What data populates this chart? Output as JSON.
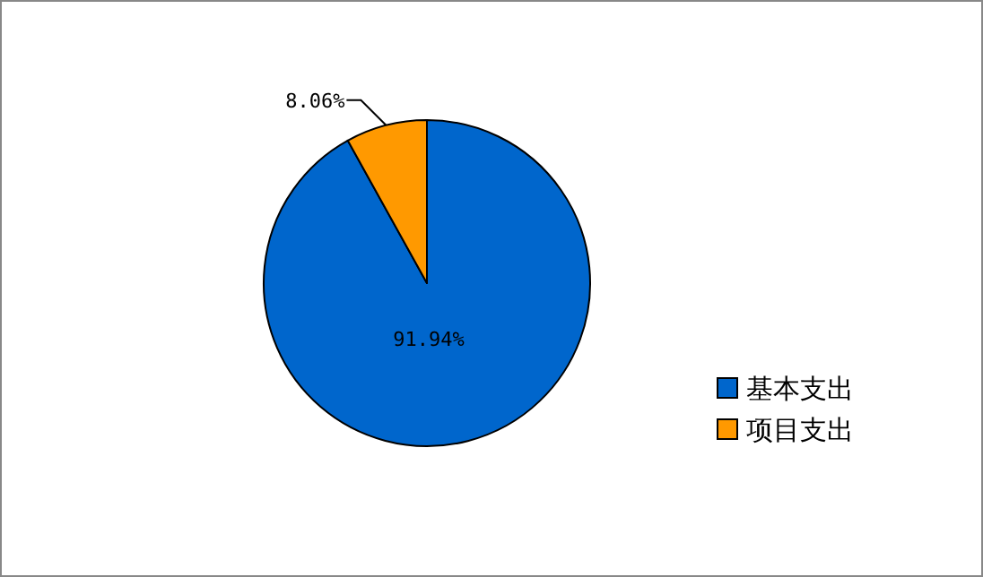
{
  "chart_data": {
    "type": "pie",
    "categories": [
      "基本支出",
      "项目支出"
    ],
    "values": [
      91.94,
      8.06
    ],
    "colors": [
      "#0066cc",
      "#ff9900"
    ],
    "value_labels": [
      "91.94%",
      "8.06%"
    ],
    "legend": "right"
  }
}
